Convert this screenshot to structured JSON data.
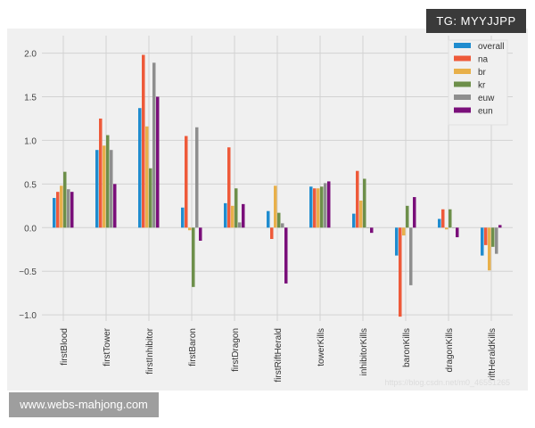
{
  "watermarks": {
    "top_right": "TG: MYYJJPP",
    "bottom_left": "www.webs-mahjong.com",
    "faint": "https://blog.csdn.net/m0_46551265"
  },
  "chart_data": {
    "type": "bar",
    "title": "",
    "xlabel": "",
    "ylabel": "",
    "ylim": [
      -1.07,
      2.2
    ],
    "yticks": [
      -1.0,
      -0.5,
      0.0,
      0.5,
      1.0,
      1.5,
      2.0
    ],
    "ytick_labels": [
      "−1.0",
      "−0.5",
      "0.0",
      "0.5",
      "1.0",
      "1.5",
      "2.0"
    ],
    "grid": true,
    "legend_position": "top-right",
    "categories": [
      "firstBlood",
      "firstTower",
      "firstInhibitor",
      "firstBaron",
      "firstDragon",
      "firstRiftHerald",
      "towerKills",
      "inhibitorKills",
      "baronKills",
      "dragonKills",
      "riftHeraldKills"
    ],
    "category_labels": [
      "firstBlood",
      "firstTower",
      "firstInhibitor",
      "firstBaron",
      "firstDragon",
      "firstRiftHerald",
      "towerKills",
      "inhibitorKills",
      "baronKills",
      "dragonKills",
      "riftHeraldKills"
    ],
    "series": [
      {
        "name": "overall",
        "color": "#1f8ccf",
        "values": [
          0.34,
          0.89,
          1.37,
          0.23,
          0.28,
          0.19,
          0.47,
          0.16,
          -0.32,
          0.1,
          -0.32
        ]
      },
      {
        "name": "na",
        "color": "#ee5a3a",
        "values": [
          0.41,
          1.25,
          1.98,
          1.05,
          0.92,
          -0.13,
          0.45,
          0.65,
          -1.02,
          0.21,
          -0.2
        ]
      },
      {
        "name": "br",
        "color": "#e8b04a",
        "values": [
          0.48,
          0.94,
          1.16,
          -0.03,
          0.25,
          0.48,
          0.45,
          0.31,
          -0.09,
          -0.02,
          -0.49
        ]
      },
      {
        "name": "kr",
        "color": "#6d8f4a",
        "values": [
          0.64,
          1.06,
          0.68,
          -0.68,
          0.45,
          0.17,
          0.47,
          0.56,
          0.25,
          0.21,
          -0.22
        ]
      },
      {
        "name": "euw",
        "color": "#8e8e8e",
        "values": [
          0.44,
          0.89,
          1.89,
          1.15,
          0.06,
          0.05,
          0.51,
          0.0,
          -0.66,
          0.0,
          -0.3
        ]
      },
      {
        "name": "eun",
        "color": "#7a0f7a",
        "values": [
          0.41,
          0.5,
          1.5,
          -0.15,
          0.27,
          -0.64,
          0.53,
          -0.06,
          0.35,
          -0.11,
          0.03
        ]
      }
    ]
  }
}
